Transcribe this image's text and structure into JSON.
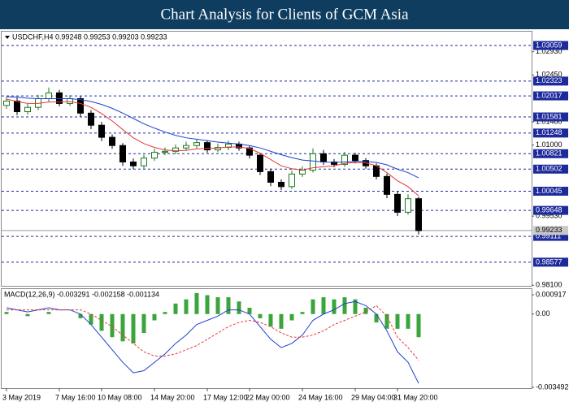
{
  "chart_data": [
    {
      "type": "candlestick",
      "title": "Chart Analysis for Clients of GCM Asia",
      "label": "USDCHF,H4 0.99248 0.99253 0.99203 0.99233",
      "categories": [
        "3 May 2019",
        null,
        null,
        null,
        null,
        "7 May 16:00",
        null,
        null,
        null,
        "10 May 08:00",
        null,
        null,
        null,
        null,
        "14 May 20:00",
        null,
        null,
        null,
        null,
        "17 May 12:00",
        null,
        null,
        null,
        "22 May 00:00",
        null,
        null,
        null,
        null,
        "24 May 16:00",
        null,
        null,
        null,
        null,
        "29 May 04:00",
        null,
        null,
        null,
        "31 May 20:00",
        null,
        null
      ],
      "open": [
        1.0182,
        1.0191,
        1.0169,
        1.0178,
        1.0196,
        1.0208,
        1.0186,
        1.0196,
        1.0166,
        1.0141,
        1.0116,
        1.0099,
        1.0065,
        1.0057,
        1.0073,
        1.0085,
        1.0087,
        1.0094,
        1.0099,
        1.0105,
        1.009,
        1.0095,
        1.0102,
        1.0094,
        1.0079,
        1.0045,
        1.0023,
        1.0014,
        1.004,
        1.0048,
        1.0082,
        1.0065,
        1.006,
        1.0079,
        1.0068,
        1.0057,
        1.0035,
        0.9998,
        0.9961,
        0.9989
      ],
      "high": [
        1.0199,
        1.0198,
        1.0185,
        1.0204,
        1.0219,
        1.0214,
        1.0203,
        1.0201,
        1.0172,
        1.0148,
        1.0122,
        1.0104,
        1.0072,
        1.008,
        1.0092,
        1.0095,
        1.0101,
        1.0107,
        1.0113,
        1.011,
        1.0103,
        1.0109,
        1.0107,
        1.0099,
        1.0084,
        1.0051,
        1.0029,
        1.0047,
        1.0056,
        1.0093,
        1.009,
        1.0071,
        1.0086,
        1.0084,
        1.0073,
        1.0062,
        1.0041,
        1.0004,
        0.9998,
        0.9993
      ],
      "low": [
        1.0175,
        1.0162,
        1.0163,
        1.0172,
        1.019,
        1.018,
        1.0181,
        1.0159,
        1.0133,
        1.0108,
        1.0092,
        1.0057,
        1.005,
        1.0051,
        1.0067,
        1.0079,
        1.0081,
        1.0088,
        1.0093,
        1.0084,
        1.0085,
        1.0089,
        1.0088,
        1.0072,
        1.0038,
        1.0015,
        1.0007,
        1.0009,
        1.0034,
        1.0043,
        1.0059,
        1.0054,
        1.0055,
        1.0062,
        1.0051,
        1.0029,
        0.999,
        0.9953,
        0.9956,
        0.9915
      ],
      "close": [
        1.0191,
        1.0169,
        1.0178,
        1.0196,
        1.0208,
        1.0186,
        1.0196,
        1.0166,
        1.0141,
        1.0116,
        1.0099,
        1.0065,
        1.0057,
        1.0073,
        1.0085,
        1.0087,
        1.0094,
        1.0099,
        1.0105,
        1.009,
        1.0095,
        1.0102,
        1.0094,
        1.0079,
        1.0045,
        1.0023,
        1.0014,
        1.004,
        1.0048,
        1.0082,
        1.0065,
        1.006,
        1.0079,
        1.0068,
        1.0057,
        1.0035,
        0.9998,
        0.9961,
        0.9989,
        0.9923
      ],
      "bull_color": "#1b7a1b",
      "bear_color": "#000000",
      "series": [
        {
          "color": "#e53935",
          "values": [
            1.0195,
            1.019,
            1.0186,
            1.0186,
            1.0189,
            1.0189,
            1.019,
            1.0186,
            1.0178,
            1.0165,
            1.015,
            1.0132,
            1.0115,
            1.0103,
            1.0095,
            1.009,
            1.0088,
            1.0089,
            1.0092,
            1.0093,
            1.0094,
            1.0096,
            1.0096,
            1.0093,
            1.0083,
            1.007,
            1.0057,
            1.0051,
            1.0048,
            1.0053,
            1.0055,
            1.0057,
            1.0062,
            1.0064,
            1.0063,
            1.0057,
            1.0043,
            1.0026,
            1.0014,
            0.9995
          ]
        },
        {
          "color": "#1f3fd0",
          "values": [
            1.02,
            1.0199,
            1.0197,
            1.0196,
            1.0196,
            1.0196,
            1.0196,
            1.0194,
            1.019,
            1.0184,
            1.0176,
            1.0166,
            1.0155,
            1.0144,
            1.0135,
            1.0127,
            1.012,
            1.0115,
            1.0112,
            1.0109,
            1.0106,
            1.0104,
            1.0102,
            1.0099,
            1.0094,
            1.0087,
            1.008,
            1.0074,
            1.0069,
            1.0067,
            1.0065,
            1.0064,
            1.0065,
            1.0066,
            1.0066,
            1.0064,
            1.0059,
            1.005,
            1.0043,
            1.0032
          ]
        }
      ],
      "ylim": [
        0.98088,
        1.03345
      ],
      "yticks": [
        {
          "value": 1.0293,
          "label": "1.02930"
        },
        {
          "value": 1.0245,
          "label": "1.02450"
        },
        {
          "value": 1.0148,
          "label": "1.01480"
        },
        {
          "value": 1.01,
          "label": "1.01000"
        },
        {
          "value": 0.9953,
          "label": "0.99530"
        },
        {
          "value": 0.981,
          "label": "0.98100"
        }
      ],
      "levels": [
        1.03059,
        1.02323,
        1.02017,
        1.01581,
        1.01248,
        1.00821,
        1.00502,
        1.00045,
        0.99648,
        0.99111,
        0.98577
      ],
      "level_color": "#1c2a9c",
      "current_price": 0.99233
    },
    {
      "type": "macd",
      "label": "MACD(12,26,9) -0.003291 -0.002158 -0.001134",
      "histogram": {
        "color": "#3aa53a",
        "values": [
          0.0001,
          0,
          -0.0001,
          0,
          0.0001,
          0,
          0,
          -0.0002,
          -0.0005,
          -0.0008,
          -0.0011,
          -0.0013,
          -0.0014,
          -0.0009,
          -0.0003,
          0.0001,
          0.0005,
          0.0007,
          0.001,
          0.0009,
          0.0008,
          0.0008,
          0.0006,
          0.0003,
          -0.0002,
          -0.0006,
          -0.0007,
          -0.0003,
          0.0001,
          0.0007,
          0.0008,
          0.0007,
          0.0008,
          0.0007,
          0.0003,
          -0.0004,
          -0.0007,
          -0.0007,
          -0.0007,
          -0.0011
        ]
      },
      "series": [
        {
          "color": "#1f3fd0",
          "values": [
            0.0003,
            0.0002,
            0.0001,
            0.0002,
            0.0003,
            0.0002,
            0.0002,
            0,
            -0.0005,
            -0.0011,
            -0.0017,
            -0.0023,
            -0.0028,
            -0.0027,
            -0.0023,
            -0.0019,
            -0.0014,
            -0.001,
            -0.0005,
            -0.0003,
            -0.0001,
            0.0002,
            0.0002,
            0,
            -0.0006,
            -0.0012,
            -0.0016,
            -0.0014,
            -0.001,
            -0.0003,
            0,
            0.0002,
            0.0005,
            0.0006,
            0.0004,
            0,
            -0.0008,
            -0.0018,
            -0.0023,
            -0.0033
          ]
        },
        {
          "color": "#e53935",
          "dashed": true,
          "values": [
            0.0002,
            0.0002,
            0.0002,
            0.0002,
            0.0002,
            0.0002,
            0.0002,
            0.0002,
            0,
            -0.0003,
            -0.0006,
            -0.001,
            -0.0014,
            -0.0018,
            -0.002,
            -0.002,
            -0.0019,
            -0.0017,
            -0.0015,
            -0.0012,
            -0.0009,
            -0.0006,
            -0.0004,
            -0.0003,
            -0.0004,
            -0.0006,
            -0.0009,
            -0.0011,
            -0.0011,
            -0.001,
            -0.0008,
            -0.0005,
            -0.0003,
            -0.0001,
            0.0001,
            0.0004,
            -0.0001,
            -0.0011,
            -0.0016,
            -0.0022
          ]
        }
      ],
      "ylim": [
        -0.00353,
        0.00119
      ],
      "yticks": [
        0.000917,
        {
          "value": 0,
          "label": "0.00"
        },
        -0.003492
      ]
    }
  ]
}
